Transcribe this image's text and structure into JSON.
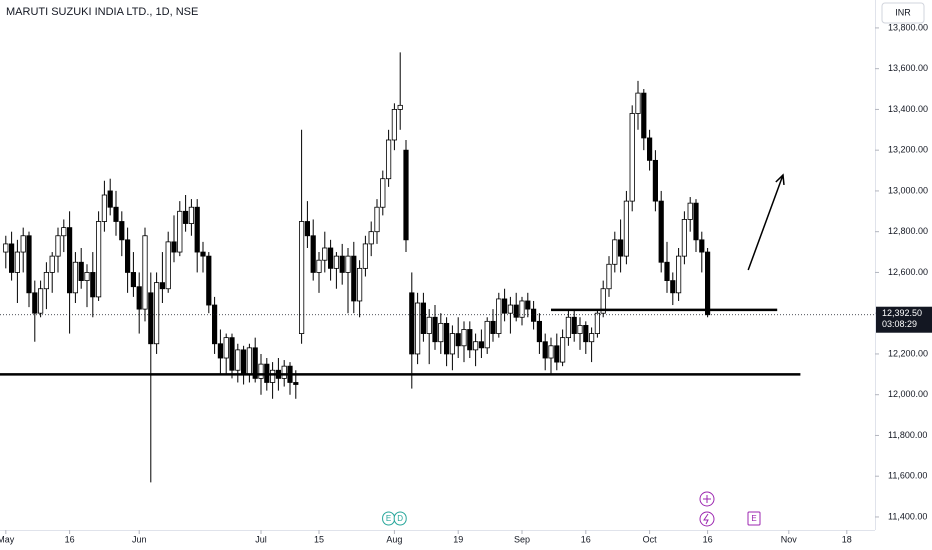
{
  "title": "MARUTI SUZUKI INDIA LTD., 1D, NSE",
  "currency_button": "INR",
  "chart_data": {
    "type": "candlestick",
    "xlim": [
      -1,
      149
    ],
    "ylim": [
      11336,
      13937
    ],
    "xticks": [
      {
        "value": 0,
        "label": "May"
      },
      {
        "value": 11,
        "label": "16"
      },
      {
        "value": 23,
        "label": "Jun"
      },
      {
        "value": 44,
        "label": "Jul"
      },
      {
        "value": 54,
        "label": "15"
      },
      {
        "value": 67,
        "label": "Aug"
      },
      {
        "value": 78,
        "label": "19"
      },
      {
        "value": 89,
        "label": "Sep"
      },
      {
        "value": 100,
        "label": "16"
      },
      {
        "value": 111,
        "label": "Oct"
      },
      {
        "value": 121,
        "label": "16"
      },
      {
        "value": 135,
        "label": "Nov"
      },
      {
        "value": 145,
        "label": "18"
      }
    ],
    "yticks": [
      {
        "value": 11400,
        "label": "11,400.00"
      },
      {
        "value": 11600,
        "label": "11,600.00"
      },
      {
        "value": 11800,
        "label": "11,800.00"
      },
      {
        "value": 12000,
        "label": "12,000.00"
      },
      {
        "value": 12200,
        "label": "12,200.00"
      },
      {
        "value": 12400,
        "label": "12,400.00"
      },
      {
        "value": 12600,
        "label": "12,600.00"
      },
      {
        "value": 12800,
        "label": "12,800.00"
      },
      {
        "value": 13000,
        "label": "13,000.00"
      },
      {
        "value": 13200,
        "label": "13,200.00"
      },
      {
        "value": 13400,
        "label": "13,400.00"
      },
      {
        "value": 13600,
        "label": "13,600.00"
      },
      {
        "value": 13800,
        "label": "13,800.00"
      }
    ],
    "up_color": "#ffffff",
    "down_color": "#000000",
    "wick_color": "#000000",
    "last_price": {
      "value": 12392.5,
      "label": "12,392.50"
    },
    "countdown": "03:08:29",
    "candles": [
      {
        "x": 0,
        "open": 12700,
        "high": 12780,
        "low": 12620,
        "close": 12740
      },
      {
        "x": 1,
        "open": 12740,
        "high": 12800,
        "low": 12560,
        "close": 12600
      },
      {
        "x": 2,
        "open": 12600,
        "high": 12760,
        "low": 12450,
        "close": 12700
      },
      {
        "x": 3,
        "open": 12700,
        "high": 12820,
        "low": 12600,
        "close": 12780
      },
      {
        "x": 4,
        "open": 12780,
        "high": 12800,
        "low": 12430,
        "close": 12500
      },
      {
        "x": 5,
        "open": 12500,
        "high": 12560,
        "low": 12260,
        "close": 12400
      },
      {
        "x": 6,
        "open": 12400,
        "high": 12560,
        "low": 12380,
        "close": 12520
      },
      {
        "x": 7,
        "open": 12520,
        "high": 12650,
        "low": 12420,
        "close": 12600
      },
      {
        "x": 8,
        "open": 12600,
        "high": 12700,
        "low": 12500,
        "close": 12680
      },
      {
        "x": 9,
        "open": 12680,
        "high": 12820,
        "low": 12600,
        "close": 12780
      },
      {
        "x": 10,
        "open": 12780,
        "high": 12860,
        "low": 12700,
        "close": 12820
      },
      {
        "x": 11,
        "open": 12820,
        "high": 12900,
        "low": 12300,
        "close": 12500
      },
      {
        "x": 12,
        "open": 12500,
        "high": 12700,
        "low": 12450,
        "close": 12650
      },
      {
        "x": 13,
        "open": 12650,
        "high": 12720,
        "low": 12520,
        "close": 12560
      },
      {
        "x": 14,
        "open": 12560,
        "high": 12640,
        "low": 12430,
        "close": 12600
      },
      {
        "x": 15,
        "open": 12600,
        "high": 12700,
        "low": 12380,
        "close": 12480
      },
      {
        "x": 16,
        "open": 12480,
        "high": 12900,
        "low": 12460,
        "close": 12850
      },
      {
        "x": 17,
        "open": 12850,
        "high": 13050,
        "low": 12800,
        "close": 12980
      },
      {
        "x": 18,
        "open": 13000,
        "high": 13060,
        "low": 12880,
        "close": 12920
      },
      {
        "x": 19,
        "open": 12920,
        "high": 13000,
        "low": 12780,
        "close": 12850
      },
      {
        "x": 20,
        "open": 12850,
        "high": 12900,
        "low": 12680,
        "close": 12760
      },
      {
        "x": 21,
        "open": 12760,
        "high": 12820,
        "low": 12500,
        "close": 12600
      },
      {
        "x": 22,
        "open": 12600,
        "high": 12700,
        "low": 12480,
        "close": 12530
      },
      {
        "x": 23,
        "open": 12530,
        "high": 12600,
        "low": 12300,
        "close": 12420
      },
      {
        "x": 24,
        "open": 12420,
        "high": 12820,
        "low": 12360,
        "close": 12780
      },
      {
        "x": 25,
        "open": 12500,
        "high": 12600,
        "low": 11570,
        "close": 12250
      },
      {
        "x": 26,
        "open": 12250,
        "high": 12600,
        "low": 12200,
        "close": 12550
      },
      {
        "x": 27,
        "open": 12550,
        "high": 12700,
        "low": 12450,
        "close": 12520
      },
      {
        "x": 28,
        "open": 12520,
        "high": 12800,
        "low": 12500,
        "close": 12750
      },
      {
        "x": 29,
        "open": 12750,
        "high": 12880,
        "low": 12650,
        "close": 12700
      },
      {
        "x": 30,
        "open": 12700,
        "high": 12950,
        "low": 12680,
        "close": 12900
      },
      {
        "x": 31,
        "open": 12900,
        "high": 12980,
        "low": 12800,
        "close": 12840
      },
      {
        "x": 32,
        "open": 12840,
        "high": 12960,
        "low": 12780,
        "close": 12920
      },
      {
        "x": 33,
        "open": 12920,
        "high": 12960,
        "low": 12600,
        "close": 12700
      },
      {
        "x": 34,
        "open": 12700,
        "high": 12750,
        "low": 12600,
        "close": 12680
      },
      {
        "x": 35,
        "open": 12680,
        "high": 12700,
        "low": 12400,
        "close": 12440
      },
      {
        "x": 36,
        "open": 12440,
        "high": 12480,
        "low": 12200,
        "close": 12250
      },
      {
        "x": 37,
        "open": 12250,
        "high": 12320,
        "low": 12100,
        "close": 12180
      },
      {
        "x": 38,
        "open": 12180,
        "high": 12300,
        "low": 12100,
        "close": 12280
      },
      {
        "x": 39,
        "open": 12280,
        "high": 12300,
        "low": 12080,
        "close": 12120
      },
      {
        "x": 40,
        "open": 12120,
        "high": 12250,
        "low": 12060,
        "close": 12220
      },
      {
        "x": 41,
        "open": 12220,
        "high": 12240,
        "low": 12050,
        "close": 12100
      },
      {
        "x": 42,
        "open": 12100,
        "high": 12250,
        "low": 12060,
        "close": 12230
      },
      {
        "x": 43,
        "open": 12230,
        "high": 12280,
        "low": 12060,
        "close": 12080
      },
      {
        "x": 44,
        "open": 12080,
        "high": 12200,
        "low": 12000,
        "close": 12150
      },
      {
        "x": 45,
        "open": 12150,
        "high": 12180,
        "low": 12020,
        "close": 12060
      },
      {
        "x": 46,
        "open": 12060,
        "high": 12160,
        "low": 11980,
        "close": 12120
      },
      {
        "x": 47,
        "open": 12120,
        "high": 12180,
        "low": 12020,
        "close": 12080
      },
      {
        "x": 48,
        "open": 12080,
        "high": 12170,
        "low": 12040,
        "close": 12140
      },
      {
        "x": 49,
        "open": 12140,
        "high": 12160,
        "low": 12000,
        "close": 12060
      },
      {
        "x": 50,
        "open": 12060,
        "high": 12120,
        "low": 11980,
        "close": 12050
      },
      {
        "x": 51,
        "open": 12300,
        "high": 13300,
        "low": 12250,
        "close": 12850
      },
      {
        "x": 52,
        "open": 12850,
        "high": 12950,
        "low": 12720,
        "close": 12780
      },
      {
        "x": 53,
        "open": 12780,
        "high": 12860,
        "low": 12560,
        "close": 12600
      },
      {
        "x": 54,
        "open": 12600,
        "high": 12700,
        "low": 12500,
        "close": 12660
      },
      {
        "x": 55,
        "open": 12660,
        "high": 12800,
        "low": 12600,
        "close": 12720
      },
      {
        "x": 56,
        "open": 12720,
        "high": 12760,
        "low": 12560,
        "close": 12620
      },
      {
        "x": 57,
        "open": 12620,
        "high": 12700,
        "low": 12520,
        "close": 12680
      },
      {
        "x": 58,
        "open": 12680,
        "high": 12740,
        "low": 12540,
        "close": 12600
      },
      {
        "x": 59,
        "open": 12600,
        "high": 12720,
        "low": 12400,
        "close": 12680
      },
      {
        "x": 60,
        "open": 12680,
        "high": 12750,
        "low": 12400,
        "close": 12460
      },
      {
        "x": 61,
        "open": 12460,
        "high": 12660,
        "low": 12380,
        "close": 12620
      },
      {
        "x": 62,
        "open": 12620,
        "high": 12780,
        "low": 12580,
        "close": 12740
      },
      {
        "x": 63,
        "open": 12740,
        "high": 12850,
        "low": 12680,
        "close": 12800
      },
      {
        "x": 64,
        "open": 12800,
        "high": 12960,
        "low": 12740,
        "close": 12920
      },
      {
        "x": 65,
        "open": 12920,
        "high": 13100,
        "low": 12880,
        "close": 13060
      },
      {
        "x": 66,
        "open": 13060,
        "high": 13300,
        "low": 13020,
        "close": 13250
      },
      {
        "x": 67,
        "open": 13250,
        "high": 13430,
        "low": 13200,
        "close": 13400
      },
      {
        "x": 68,
        "open": 13400,
        "high": 13680,
        "low": 13300,
        "close": 13420
      },
      {
        "x": 69,
        "open": 13200,
        "high": 13250,
        "low": 12700,
        "close": 12760
      },
      {
        "x": 70,
        "open": 12500,
        "high": 12600,
        "low": 12030,
        "close": 12200
      },
      {
        "x": 71,
        "open": 12200,
        "high": 12500,
        "low": 12150,
        "close": 12450
      },
      {
        "x": 72,
        "open": 12450,
        "high": 12500,
        "low": 12260,
        "close": 12300
      },
      {
        "x": 73,
        "open": 12300,
        "high": 12420,
        "low": 12150,
        "close": 12380
      },
      {
        "x": 74,
        "open": 12380,
        "high": 12440,
        "low": 12220,
        "close": 12260
      },
      {
        "x": 75,
        "open": 12260,
        "high": 12400,
        "low": 12200,
        "close": 12350
      },
      {
        "x": 76,
        "open": 12350,
        "high": 12380,
        "low": 12140,
        "close": 12200
      },
      {
        "x": 77,
        "open": 12200,
        "high": 12340,
        "low": 12120,
        "close": 12300
      },
      {
        "x": 78,
        "open": 12300,
        "high": 12380,
        "low": 12180,
        "close": 12240
      },
      {
        "x": 79,
        "open": 12240,
        "high": 12360,
        "low": 12160,
        "close": 12320
      },
      {
        "x": 80,
        "open": 12320,
        "high": 12360,
        "low": 12180,
        "close": 12220
      },
      {
        "x": 81,
        "open": 12220,
        "high": 12300,
        "low": 12140,
        "close": 12260
      },
      {
        "x": 82,
        "open": 12260,
        "high": 12320,
        "low": 12180,
        "close": 12230
      },
      {
        "x": 83,
        "open": 12230,
        "high": 12380,
        "low": 12200,
        "close": 12360
      },
      {
        "x": 84,
        "open": 12360,
        "high": 12420,
        "low": 12260,
        "close": 12300
      },
      {
        "x": 85,
        "open": 12300,
        "high": 12500,
        "low": 12280,
        "close": 12470
      },
      {
        "x": 86,
        "open": 12470,
        "high": 12520,
        "low": 12360,
        "close": 12400
      },
      {
        "x": 87,
        "open": 12400,
        "high": 12480,
        "low": 12300,
        "close": 12440
      },
      {
        "x": 88,
        "open": 12440,
        "high": 12500,
        "low": 12360,
        "close": 12380
      },
      {
        "x": 89,
        "open": 12380,
        "high": 12480,
        "low": 12340,
        "close": 12460
      },
      {
        "x": 90,
        "open": 12460,
        "high": 12500,
        "low": 12380,
        "close": 12420
      },
      {
        "x": 91,
        "open": 12420,
        "high": 12460,
        "low": 12320,
        "close": 12360
      },
      {
        "x": 92,
        "open": 12360,
        "high": 12400,
        "low": 12200,
        "close": 12260
      },
      {
        "x": 93,
        "open": 12260,
        "high": 12300,
        "low": 12120,
        "close": 12180
      },
      {
        "x": 94,
        "open": 12180,
        "high": 12280,
        "low": 12100,
        "close": 12240
      },
      {
        "x": 95,
        "open": 12240,
        "high": 12300,
        "low": 12120,
        "close": 12160
      },
      {
        "x": 96,
        "open": 12160,
        "high": 12320,
        "low": 12140,
        "close": 12280
      },
      {
        "x": 97,
        "open": 12280,
        "high": 12420,
        "low": 12240,
        "close": 12380
      },
      {
        "x": 98,
        "open": 12380,
        "high": 12420,
        "low": 12260,
        "close": 12300
      },
      {
        "x": 99,
        "open": 12300,
        "high": 12380,
        "low": 12220,
        "close": 12340
      },
      {
        "x": 100,
        "open": 12340,
        "high": 12360,
        "low": 12200,
        "close": 12260
      },
      {
        "x": 101,
        "open": 12260,
        "high": 12330,
        "low": 12160,
        "close": 12300
      },
      {
        "x": 102,
        "open": 12300,
        "high": 12420,
        "low": 12280,
        "close": 12400
      },
      {
        "x": 103,
        "open": 12400,
        "high": 12560,
        "low": 12380,
        "close": 12520
      },
      {
        "x": 104,
        "open": 12520,
        "high": 12680,
        "low": 12480,
        "close": 12640
      },
      {
        "x": 105,
        "open": 12640,
        "high": 12800,
        "low": 12600,
        "close": 12760
      },
      {
        "x": 106,
        "open": 12760,
        "high": 12860,
        "low": 12600,
        "close": 12680
      },
      {
        "x": 107,
        "open": 12680,
        "high": 13000,
        "low": 12640,
        "close": 12950
      },
      {
        "x": 108,
        "open": 12950,
        "high": 13420,
        "low": 12900,
        "close": 13380
      },
      {
        "x": 109,
        "open": 13380,
        "high": 13540,
        "low": 13300,
        "close": 13480
      },
      {
        "x": 110,
        "open": 13480,
        "high": 13500,
        "low": 13200,
        "close": 13260
      },
      {
        "x": 111,
        "open": 13260,
        "high": 13300,
        "low": 13100,
        "close": 13150
      },
      {
        "x": 112,
        "open": 13150,
        "high": 13200,
        "low": 12900,
        "close": 12950
      },
      {
        "x": 113,
        "open": 12950,
        "high": 13000,
        "low": 12600,
        "close": 12650
      },
      {
        "x": 114,
        "open": 12650,
        "high": 12750,
        "low": 12500,
        "close": 12560
      },
      {
        "x": 115,
        "open": 12560,
        "high": 12600,
        "low": 12440,
        "close": 12500
      },
      {
        "x": 116,
        "open": 12500,
        "high": 12720,
        "low": 12460,
        "close": 12680
      },
      {
        "x": 117,
        "open": 12680,
        "high": 12900,
        "low": 12640,
        "close": 12860
      },
      {
        "x": 118,
        "open": 12860,
        "high": 12970,
        "low": 12800,
        "close": 12940
      },
      {
        "x": 119,
        "open": 12940,
        "high": 12960,
        "low": 12700,
        "close": 12760
      },
      {
        "x": 120,
        "open": 12760,
        "high": 12800,
        "low": 12600,
        "close": 12700
      },
      {
        "x": 121,
        "open": 12700,
        "high": 12720,
        "low": 12380,
        "close": 12392.5
      }
    ],
    "drawings": [
      {
        "kind": "line",
        "x": [
          -1,
          137
        ],
        "y": [
          12100,
          12100
        ]
      },
      {
        "kind": "line",
        "x": [
          94,
          133
        ],
        "y": [
          12416,
          12416
        ]
      },
      {
        "kind": "arrow",
        "x": [
          128,
          134
        ],
        "y": [
          12612,
          13078
        ]
      }
    ],
    "events": [
      {
        "x": 66,
        "label": "E"
      },
      {
        "x": 68,
        "label": "D"
      },
      {
        "x": 129,
        "label": "E"
      }
    ]
  }
}
